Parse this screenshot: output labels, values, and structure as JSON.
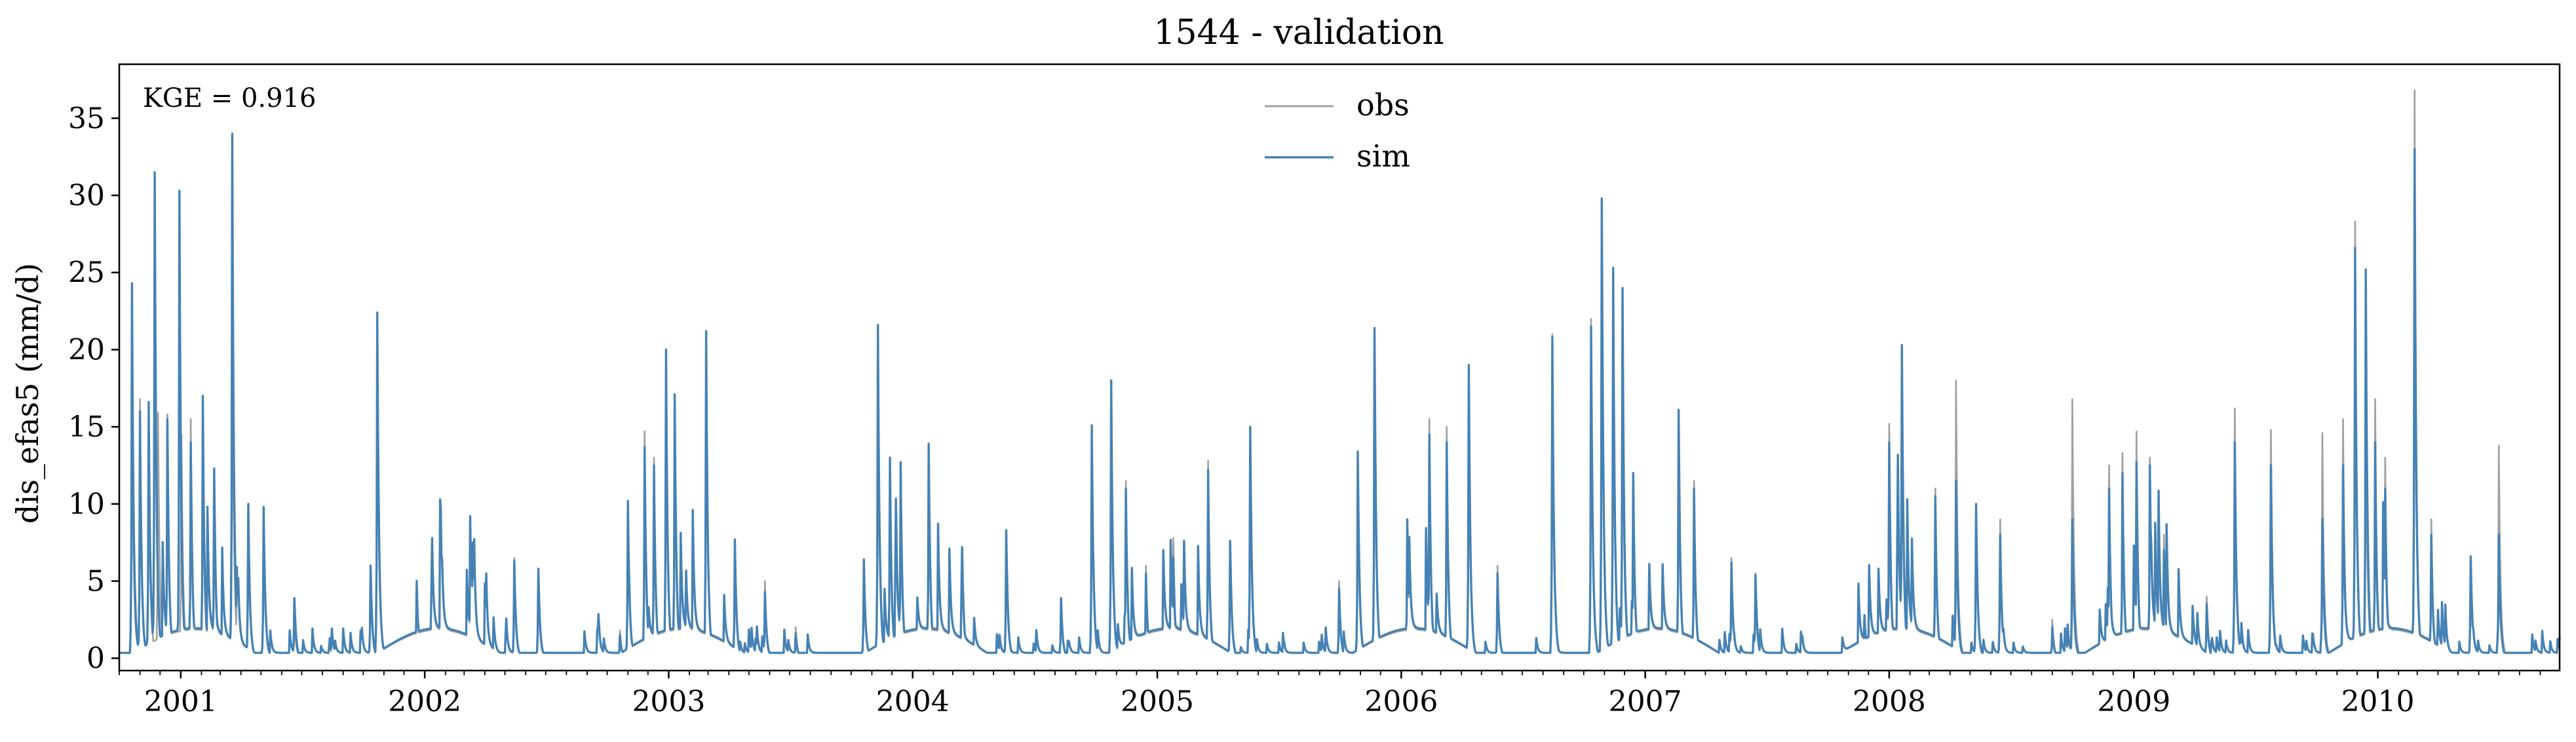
{
  "chart_data": {
    "type": "line",
    "title": "1544 - validation",
    "xlabel": "",
    "ylabel": "dis_efas5 (mm/d)",
    "x_start": "2000-10-01",
    "x_end": "2010-09-30",
    "xticks": [
      "2001",
      "2002",
      "2003",
      "2004",
      "2005",
      "2006",
      "2007",
      "2008",
      "2009",
      "2010"
    ],
    "ylim": [
      -0.8,
      38.5
    ],
    "yticks": [
      0,
      5,
      10,
      15,
      20,
      25,
      30,
      35
    ],
    "grid": false,
    "legend_position": "top-center",
    "annotation": "KGE = 0.916",
    "series": [
      {
        "name": "obs",
        "color": "#a0a0a0",
        "peaks": [
          [
            "2000-10-20",
            17.0
          ],
          [
            "2000-11-01",
            16.8
          ],
          [
            "2000-11-14",
            16.3
          ],
          [
            "2000-11-28",
            15.9
          ],
          [
            "2000-12-12",
            15.8
          ],
          [
            "2001-01-02",
            14.5
          ],
          [
            "2001-01-16",
            15.5
          ],
          [
            "2001-02-03",
            14.6
          ],
          [
            "2001-02-20",
            11.2
          ],
          [
            "2001-03-19",
            22.0
          ],
          [
            "2001-04-12",
            10.0
          ],
          [
            "2001-05-05",
            9.6
          ],
          [
            "2001-06-20",
            2.5
          ],
          [
            "2001-08-12",
            1.0
          ],
          [
            "2001-10-12",
            5.5
          ],
          [
            "2001-10-22",
            21.5
          ],
          [
            "2001-12-20",
            5.0
          ],
          [
            "2002-01-25",
            9.5
          ],
          [
            "2002-03-10",
            8.5
          ],
          [
            "2002-05-15",
            6.5
          ],
          [
            "2002-06-20",
            5.0
          ],
          [
            "2002-10-20",
            1.8
          ],
          [
            "2002-11-01",
            10.0
          ],
          [
            "2002-11-26",
            14.7
          ],
          [
            "2002-12-10",
            13.0
          ],
          [
            "2002-12-28",
            18.0
          ],
          [
            "2003-01-10",
            17.0
          ],
          [
            "2003-02-26",
            20.5
          ],
          [
            "2003-04-10",
            7.5
          ],
          [
            "2003-05-25",
            5.0
          ],
          [
            "2003-07-10",
            2.0
          ],
          [
            "2003-10-20",
            6.0
          ],
          [
            "2003-11-10",
            19.5
          ],
          [
            "2003-11-28",
            12.5
          ],
          [
            "2003-12-14",
            11.5
          ],
          [
            "2004-01-25",
            12.5
          ],
          [
            "2004-03-15",
            7.0
          ],
          [
            "2004-05-20",
            8.0
          ],
          [
            "2004-08-10",
            3.5
          ],
          [
            "2004-09-25",
            14.0
          ],
          [
            "2004-10-24",
            17.5
          ],
          [
            "2004-11-15",
            11.5
          ],
          [
            "2004-12-15",
            6.0
          ],
          [
            "2005-01-25",
            7.8
          ],
          [
            "2005-03-18",
            12.8
          ],
          [
            "2005-04-20",
            7.5
          ],
          [
            "2005-05-20",
            14.0
          ],
          [
            "2005-07-10",
            1.0
          ],
          [
            "2005-09-30",
            5.0
          ],
          [
            "2005-10-28",
            12.5
          ],
          [
            "2005-11-22",
            20.5
          ],
          [
            "2006-01-10",
            8.5
          ],
          [
            "2006-02-12",
            15.5
          ],
          [
            "2006-03-10",
            15.0
          ],
          [
            "2006-04-12",
            19.0
          ],
          [
            "2006-05-25",
            6.0
          ],
          [
            "2006-08-15",
            21.0
          ],
          [
            "2006-10-12",
            22.0
          ],
          [
            "2006-10-28",
            29.5
          ],
          [
            "2006-11-14",
            24.5
          ],
          [
            "2006-11-28",
            20.2
          ],
          [
            "2006-12-14",
            12.0
          ],
          [
            "2007-02-20",
            15.0
          ],
          [
            "2007-03-15",
            11.5
          ],
          [
            "2007-05-10",
            6.5
          ],
          [
            "2007-06-15",
            5.5
          ],
          [
            "2007-11-25",
            2.5
          ],
          [
            "2008-01-01",
            15.2
          ],
          [
            "2008-01-20",
            19.0
          ],
          [
            "2008-03-10",
            11.0
          ],
          [
            "2008-04-10",
            18.0
          ],
          [
            "2008-05-10",
            10.0
          ],
          [
            "2008-06-15",
            9.0
          ],
          [
            "2008-09-01",
            2.5
          ],
          [
            "2008-10-01",
            16.8
          ],
          [
            "2008-11-25",
            12.5
          ],
          [
            "2008-12-15",
            13.3
          ],
          [
            "2009-01-05",
            14.7
          ],
          [
            "2009-01-25",
            13.0
          ],
          [
            "2009-02-15",
            8.0
          ],
          [
            "2009-04-20",
            4.0
          ],
          [
            "2009-06-01",
            16.2
          ],
          [
            "2009-07-25",
            14.8
          ],
          [
            "2009-10-10",
            14.6
          ],
          [
            "2009-11-10",
            15.5
          ],
          [
            "2009-11-28",
            28.3
          ],
          [
            "2009-12-14",
            16.9
          ],
          [
            "2009-12-28",
            16.8
          ],
          [
            "2010-01-12",
            13.0
          ],
          [
            "2010-02-25",
            36.8
          ],
          [
            "2010-03-22",
            9.0
          ],
          [
            "2010-05-20",
            6.5
          ],
          [
            "2010-07-01",
            13.8
          ]
        ]
      },
      {
        "name": "sim",
        "color": "#4682b4",
        "peaks": [
          [
            "2000-10-20",
            24.3
          ],
          [
            "2000-11-01",
            16.0
          ],
          [
            "2000-11-14",
            16.6
          ],
          [
            "2000-11-23",
            31.5
          ],
          [
            "2000-12-12",
            15.5
          ],
          [
            "2000-12-30",
            30.3
          ],
          [
            "2001-01-16",
            14.0
          ],
          [
            "2001-02-03",
            17.0
          ],
          [
            "2001-02-20",
            12.3
          ],
          [
            "2001-03-19",
            34.0
          ],
          [
            "2001-04-12",
            10.0
          ],
          [
            "2001-05-05",
            9.8
          ],
          [
            "2001-06-20",
            3.9
          ],
          [
            "2001-08-12",
            1.3
          ],
          [
            "2001-10-12",
            6.0
          ],
          [
            "2001-10-22",
            22.4
          ],
          [
            "2001-12-20",
            5.0
          ],
          [
            "2002-01-25",
            9.8
          ],
          [
            "2002-03-10",
            9.2
          ],
          [
            "2002-05-15",
            6.3
          ],
          [
            "2002-06-20",
            5.8
          ],
          [
            "2002-10-20",
            1.5
          ],
          [
            "2002-11-01",
            10.2
          ],
          [
            "2002-11-26",
            13.7
          ],
          [
            "2002-12-10",
            12.5
          ],
          [
            "2002-12-28",
            20.0
          ],
          [
            "2003-01-10",
            17.1
          ],
          [
            "2003-02-26",
            21.2
          ],
          [
            "2003-04-10",
            7.7
          ],
          [
            "2003-05-25",
            4.3
          ],
          [
            "2003-07-10",
            1.6
          ],
          [
            "2003-10-20",
            6.4
          ],
          [
            "2003-11-10",
            21.6
          ],
          [
            "2003-11-28",
            13.0
          ],
          [
            "2003-12-14",
            12.7
          ],
          [
            "2004-01-25",
            13.9
          ],
          [
            "2004-03-15",
            7.2
          ],
          [
            "2004-05-20",
            8.3
          ],
          [
            "2004-08-10",
            3.9
          ],
          [
            "2004-09-25",
            15.1
          ],
          [
            "2004-10-24",
            18.0
          ],
          [
            "2004-11-15",
            11.0
          ],
          [
            "2004-12-15",
            5.5
          ],
          [
            "2005-01-25",
            6.5
          ],
          [
            "2005-03-18",
            12.2
          ],
          [
            "2005-04-20",
            7.6
          ],
          [
            "2005-05-20",
            15.0
          ],
          [
            "2005-07-10",
            1.0
          ],
          [
            "2005-09-30",
            4.5
          ],
          [
            "2005-10-28",
            13.4
          ],
          [
            "2005-11-22",
            21.4
          ],
          [
            "2006-01-10",
            9.0
          ],
          [
            "2006-02-12",
            14.5
          ],
          [
            "2006-03-10",
            14.0
          ],
          [
            "2006-04-12",
            19.0
          ],
          [
            "2006-05-25",
            5.5
          ],
          [
            "2006-08-15",
            20.8
          ],
          [
            "2006-10-12",
            21.5
          ],
          [
            "2006-10-28",
            29.8
          ],
          [
            "2006-11-14",
            25.3
          ],
          [
            "2006-11-28",
            24.0
          ],
          [
            "2006-12-14",
            12.0
          ],
          [
            "2007-02-20",
            16.1
          ],
          [
            "2007-03-15",
            11.0
          ],
          [
            "2007-05-10",
            6.2
          ],
          [
            "2007-06-15",
            5.4
          ],
          [
            "2007-11-25",
            2.8
          ],
          [
            "2008-01-01",
            14.0
          ],
          [
            "2008-01-20",
            20.3
          ],
          [
            "2008-03-10",
            10.5
          ],
          [
            "2008-04-10",
            11.5
          ],
          [
            "2008-05-10",
            10.0
          ],
          [
            "2008-06-15",
            8.0
          ],
          [
            "2008-09-01",
            2.0
          ],
          [
            "2008-10-01",
            9.0
          ],
          [
            "2008-11-25",
            11.0
          ],
          [
            "2008-12-15",
            12.0
          ],
          [
            "2009-01-05",
            12.7
          ],
          [
            "2009-01-25",
            12.5
          ],
          [
            "2009-02-15",
            7.0
          ],
          [
            "2009-04-20",
            3.5
          ],
          [
            "2009-06-01",
            14.0
          ],
          [
            "2009-07-25",
            12.5
          ],
          [
            "2009-10-10",
            9.0
          ],
          [
            "2009-11-10",
            12.5
          ],
          [
            "2009-11-28",
            26.6
          ],
          [
            "2009-12-14",
            25.2
          ],
          [
            "2009-12-28",
            14.0
          ],
          [
            "2010-01-12",
            11.0
          ],
          [
            "2010-02-25",
            33.0
          ],
          [
            "2010-03-22",
            8.0
          ],
          [
            "2010-05-20",
            6.6
          ],
          [
            "2010-07-01",
            8.0
          ]
        ]
      }
    ]
  }
}
